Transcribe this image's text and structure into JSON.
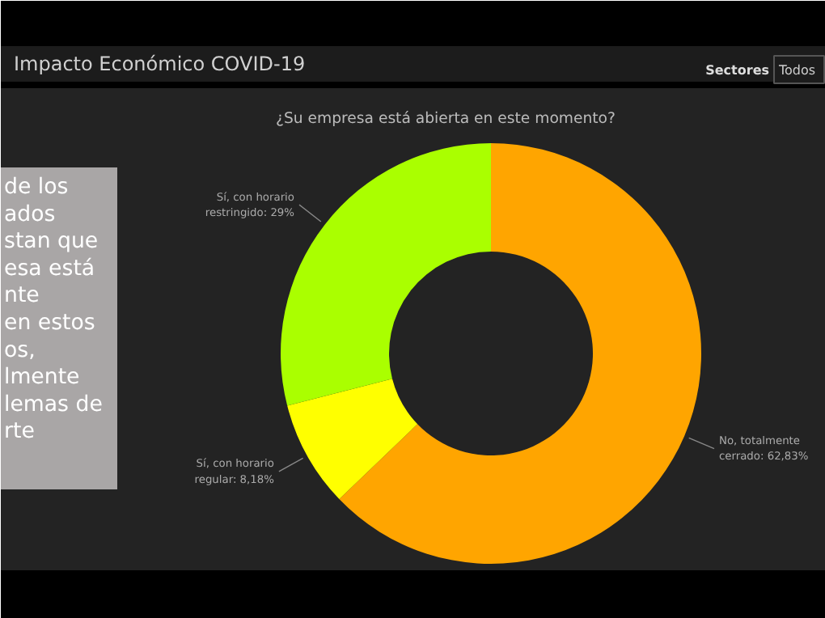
{
  "chart_data": {
    "type": "donut",
    "title": "Impacto Económico COVID-19",
    "subtitle": "¿Su empresa está abierta en este momento?",
    "categories": [
      "No, totalmente cerrado",
      "Sí, con horario regular",
      "Sí, con horario restringido"
    ],
    "values": [
      62.83,
      8.18,
      29
    ],
    "value_labels": [
      "62,83%",
      "8,18%",
      "29%"
    ],
    "colors": [
      "#ffa500",
      "#ffff00",
      "#aaff00"
    ],
    "annotations": [
      "Sectores",
      "Todos",
      "de los\nados\nstan que\nesa está\nnte\nen estos\nos,\nlmente\nlemas de\nrte"
    ]
  }
}
